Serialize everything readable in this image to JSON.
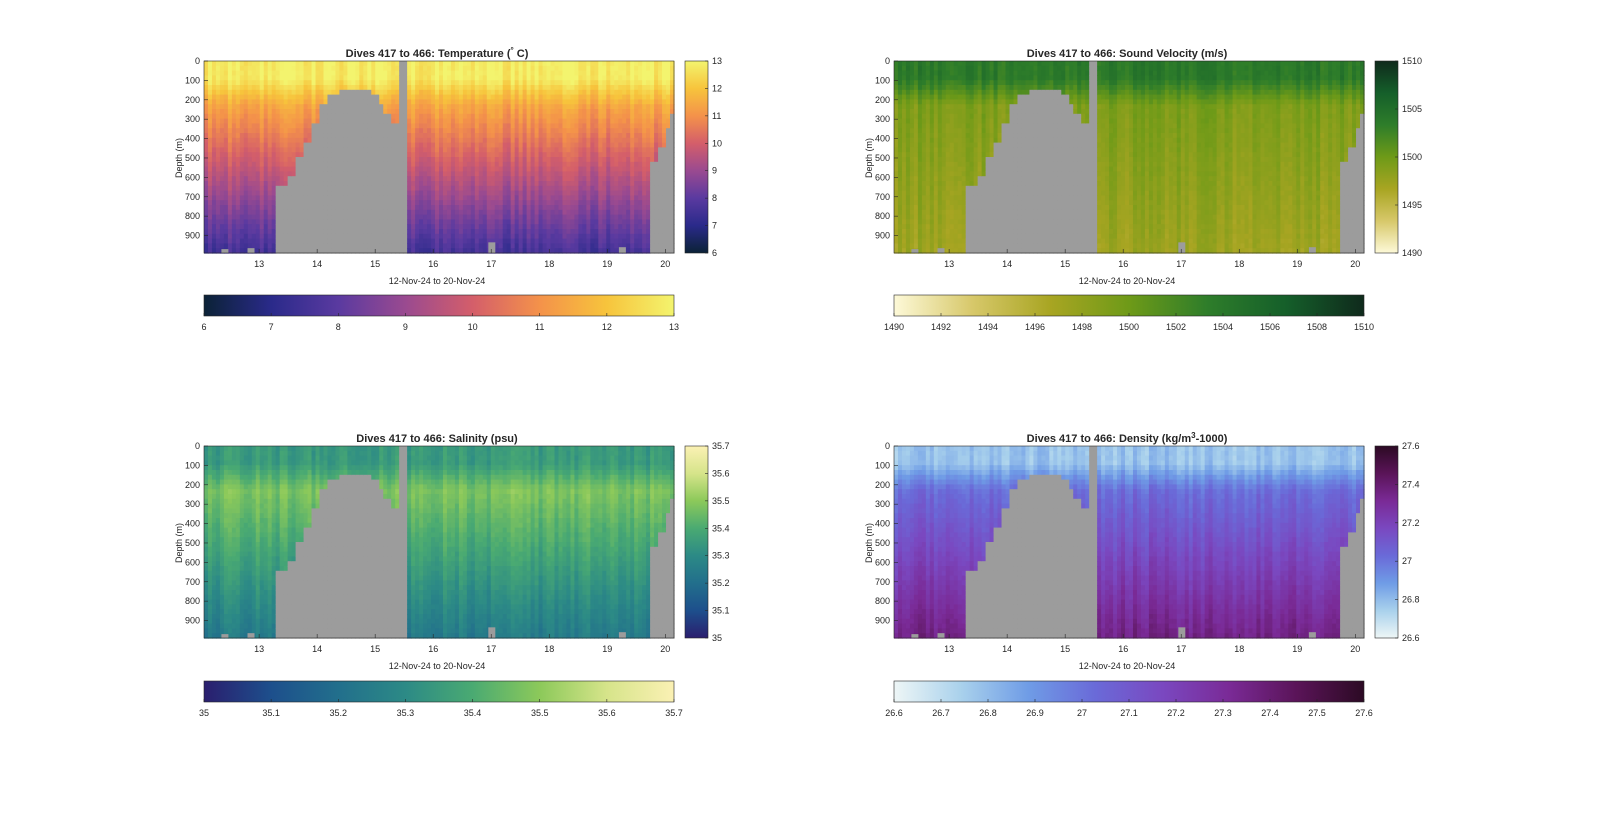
{
  "chart_data": [
    {
      "type": "heatmap",
      "title": "Dives 417 to 466: Temperature (",
      "title_unit": "°",
      "title_suffix": " C)",
      "xlabel": "12-Nov-24 to 20-Nov-24",
      "ylabel": "Depth (m)",
      "xlim": [
        12.05,
        20.15
      ],
      "ylim": [
        0,
        990
      ],
      "x_ticks": [
        13,
        14,
        15,
        16,
        17,
        18,
        19,
        20
      ],
      "y_ticks": [
        0,
        100,
        200,
        300,
        400,
        500,
        600,
        700,
        800,
        900
      ],
      "colorbar_ticks": [
        6,
        7,
        8,
        9,
        10,
        11,
        12,
        13
      ],
      "clim": [
        6,
        13
      ],
      "colormap": [
        "#0b2236",
        "#2a2a8a",
        "#5a3aa0",
        "#9a4a90",
        "#d45e6a",
        "#f4924a",
        "#f7c43c",
        "#f3f46e"
      ],
      "profile": {
        "surface": 12.8,
        "thermo": 11.4,
        "bottom": 7.5
      }
    },
    {
      "type": "heatmap",
      "title": "Dives 417 to 466: Sound Velocity (m/s)",
      "xlabel": "12-Nov-24 to 20-Nov-24",
      "ylabel": "Depth (m)",
      "xlim": [
        12.05,
        20.15
      ],
      "ylim": [
        0,
        990
      ],
      "x_ticks": [
        13,
        14,
        15,
        16,
        17,
        18,
        19,
        20
      ],
      "y_ticks": [
        0,
        100,
        200,
        300,
        400,
        500,
        600,
        700,
        800,
        900
      ],
      "colorbar_ticks": [
        1490,
        1495,
        1500,
        1505,
        1510
      ],
      "hcolorbar_ticks": [
        1490,
        1492,
        1494,
        1496,
        1498,
        1500,
        1502,
        1504,
        1506,
        1508,
        1510
      ],
      "clim": [
        1490,
        1510
      ],
      "colormap": [
        "#fdf9d8",
        "#d7c86a",
        "#a8a522",
        "#6e9a18",
        "#2e7d2a",
        "#155f2a",
        "#0f2a1c"
      ],
      "profile": {
        "surface": 1503.8,
        "thermo": 1499.2,
        "bottom": 1497.2
      }
    },
    {
      "type": "heatmap",
      "title": "Dives 417 to 466: Salinity (psu)",
      "xlabel": "12-Nov-24 to 20-Nov-24",
      "ylabel": "Depth (m)",
      "xlim": [
        12.05,
        20.15
      ],
      "ylim": [
        0,
        990
      ],
      "x_ticks": [
        13,
        14,
        15,
        16,
        17,
        18,
        19,
        20
      ],
      "y_ticks": [
        0,
        100,
        200,
        300,
        400,
        500,
        600,
        700,
        800,
        900
      ],
      "colorbar_ticks": [
        35,
        35.1,
        35.2,
        35.3,
        35.4,
        35.5,
        35.6,
        35.7
      ],
      "clim": [
        35,
        35.7
      ],
      "colormap": [
        "#2a1e6e",
        "#1d4f8c",
        "#226f8c",
        "#2c8a86",
        "#4aaa72",
        "#8cc95a",
        "#d6e48a",
        "#fbf1b4"
      ],
      "profile": {
        "surface": 35.35,
        "thermo": 35.48,
        "bottom": 35.24
      }
    },
    {
      "type": "heatmap",
      "title": "Dives 417 to 466: Density (kg/m",
      "title_sup": "3",
      "title_suffix": "-1000)",
      "xlabel": "12-Nov-24 to 20-Nov-24",
      "ylabel": "Depth (m)",
      "xlim": [
        12.05,
        20.15
      ],
      "ylim": [
        0,
        990
      ],
      "x_ticks": [
        13,
        14,
        15,
        16,
        17,
        18,
        19,
        20
      ],
      "y_ticks": [
        0,
        100,
        200,
        300,
        400,
        500,
        600,
        700,
        800,
        900
      ],
      "colorbar_ticks": [
        26.6,
        26.8,
        27,
        27.2,
        27.4,
        27.6
      ],
      "colorbar_tick_labels": [
        "26.6",
        "26.8",
        "27",
        "27.2",
        "27.4",
        "27.6"
      ],
      "hcolorbar_ticks": [
        26.6,
        26.7,
        26.8,
        26.9,
        27,
        27.1,
        27.2,
        27.3,
        27.4,
        27.5,
        27.6
      ],
      "hcolorbar_tick_labels": [
        "26.6",
        "26.7",
        "26.8",
        "26.9",
        "27",
        "27.1",
        "27.2",
        "27.3",
        "27.4",
        "27.5",
        "27.6"
      ],
      "clim": [
        26.6,
        27.6
      ],
      "colormap": [
        "#eef6f6",
        "#a9d1ec",
        "#6f9ce6",
        "#6a6ad8",
        "#7a48c0",
        "#7a2a96",
        "#5a1458",
        "#2c0a24"
      ],
      "profile": {
        "surface": 26.78,
        "thermo": 27.02,
        "bottom": 27.36
      }
    }
  ],
  "figure": {
    "nan_color": "#9c9c9c",
    "seamount": [
      [
        13.3,
        640
      ],
      [
        13.52,
        590
      ],
      [
        13.65,
        500
      ],
      [
        13.78,
        420
      ],
      [
        13.92,
        330
      ],
      [
        14.05,
        220
      ],
      [
        14.2,
        185
      ],
      [
        14.35,
        155
      ],
      [
        14.55,
        155
      ],
      [
        14.75,
        155
      ],
      [
        14.9,
        175
      ],
      [
        15.05,
        220
      ],
      [
        15.15,
        280
      ],
      [
        15.28,
        330
      ],
      [
        15.42,
        440
      ],
      [
        15.55,
        440
      ]
    ],
    "gap_column": [
      15.4,
      15.55
    ],
    "right_wall": [
      [
        19.75,
        520
      ],
      [
        19.9,
        450
      ],
      [
        20.0,
        340
      ],
      [
        20.08,
        270
      ],
      [
        20.15,
        270
      ]
    ],
    "deep_notches": [
      [
        12.35,
        970
      ],
      [
        12.8,
        965
      ],
      [
        16.95,
        935
      ],
      [
        19.2,
        960
      ]
    ]
  }
}
